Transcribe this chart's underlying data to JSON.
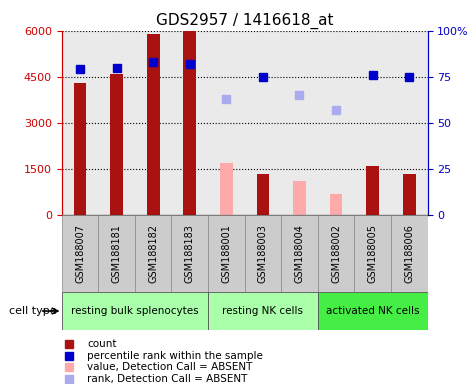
{
  "title": "GDS2957 / 1416618_at",
  "samples": [
    "GSM188007",
    "GSM188181",
    "GSM188182",
    "GSM188183",
    "GSM188001",
    "GSM188003",
    "GSM188004",
    "GSM188002",
    "GSM188005",
    "GSM188006"
  ],
  "bar_values": [
    4300,
    4600,
    5900,
    6000,
    1700,
    1350,
    1100,
    700,
    1600,
    1350
  ],
  "bar_absent": [
    false,
    false,
    false,
    false,
    true,
    false,
    true,
    true,
    false,
    false
  ],
  "bar_colors_present": "#aa1111",
  "bar_colors_absent": "#ffaaaa",
  "rank_values": [
    79,
    80,
    83,
    82,
    63,
    75,
    65,
    57,
    76,
    75
  ],
  "rank_absent": [
    false,
    false,
    false,
    false,
    true,
    false,
    true,
    true,
    false,
    false
  ],
  "rank_colors_present": "#0000cc",
  "rank_colors_absent": "#aaaaee",
  "ylim_left": [
    0,
    6000
  ],
  "ylim_right": [
    0,
    100
  ],
  "yticks_left": [
    0,
    1500,
    3000,
    4500,
    6000
  ],
  "ytick_labels_left": [
    "0",
    "1500",
    "3000",
    "4500",
    "6000"
  ],
  "yticks_right": [
    0,
    25,
    50,
    75,
    100
  ],
  "ytick_labels_right": [
    "0",
    "25",
    "50",
    "75",
    "100%"
  ],
  "cell_groups": [
    {
      "label": "resting bulk splenocytes",
      "start": 0,
      "end": 4,
      "color": "#aaffaa"
    },
    {
      "label": "resting NK cells",
      "start": 4,
      "end": 7,
      "color": "#aaffaa"
    },
    {
      "label": "activated NK cells",
      "start": 7,
      "end": 10,
      "color": "#44ee44"
    }
  ],
  "cell_type_label": "cell type",
  "legend_items": [
    {
      "label": "count",
      "color": "#aa1111"
    },
    {
      "label": "percentile rank within the sample",
      "color": "#0000cc"
    },
    {
      "label": "value, Detection Call = ABSENT",
      "color": "#ffaaaa"
    },
    {
      "label": "rank, Detection Call = ABSENT",
      "color": "#aaaaee"
    }
  ],
  "bar_width": 0.35,
  "marker_size": 6,
  "left_axis_color": "#cc0000",
  "right_axis_color": "#0000cc",
  "col_bg_color": "#cccccc",
  "plot_bg": "#ffffff"
}
